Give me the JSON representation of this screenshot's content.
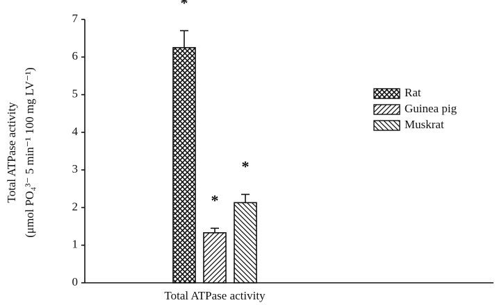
{
  "chart_data": {
    "type": "bar",
    "ylabel": [
      "Total ATPase activity",
      "(μmol PO₄³⁻ 5 min⁻¹ 100 mg LV⁻¹)"
    ],
    "categories": [
      "Total ATPase activity"
    ],
    "series": [
      {
        "name": "Rat",
        "pattern": "crosshatch",
        "values": [
          6.25
        ],
        "errors": [
          0.45
        ],
        "annotations": [
          "*"
        ]
      },
      {
        "name": "Guinea pig",
        "pattern": "forward-diagonal",
        "values": [
          1.33
        ],
        "errors": [
          0.12
        ],
        "annotations": [
          "*"
        ]
      },
      {
        "name": "Muskrat",
        "pattern": "back-diagonal",
        "values": [
          2.13
        ],
        "errors": [
          0.22
        ],
        "annotations": [
          "*"
        ]
      }
    ],
    "ylim": [
      0,
      7
    ],
    "yticks": [
      0,
      1,
      2,
      3,
      4,
      5,
      6,
      7
    ],
    "grid": false,
    "legend": "right"
  }
}
